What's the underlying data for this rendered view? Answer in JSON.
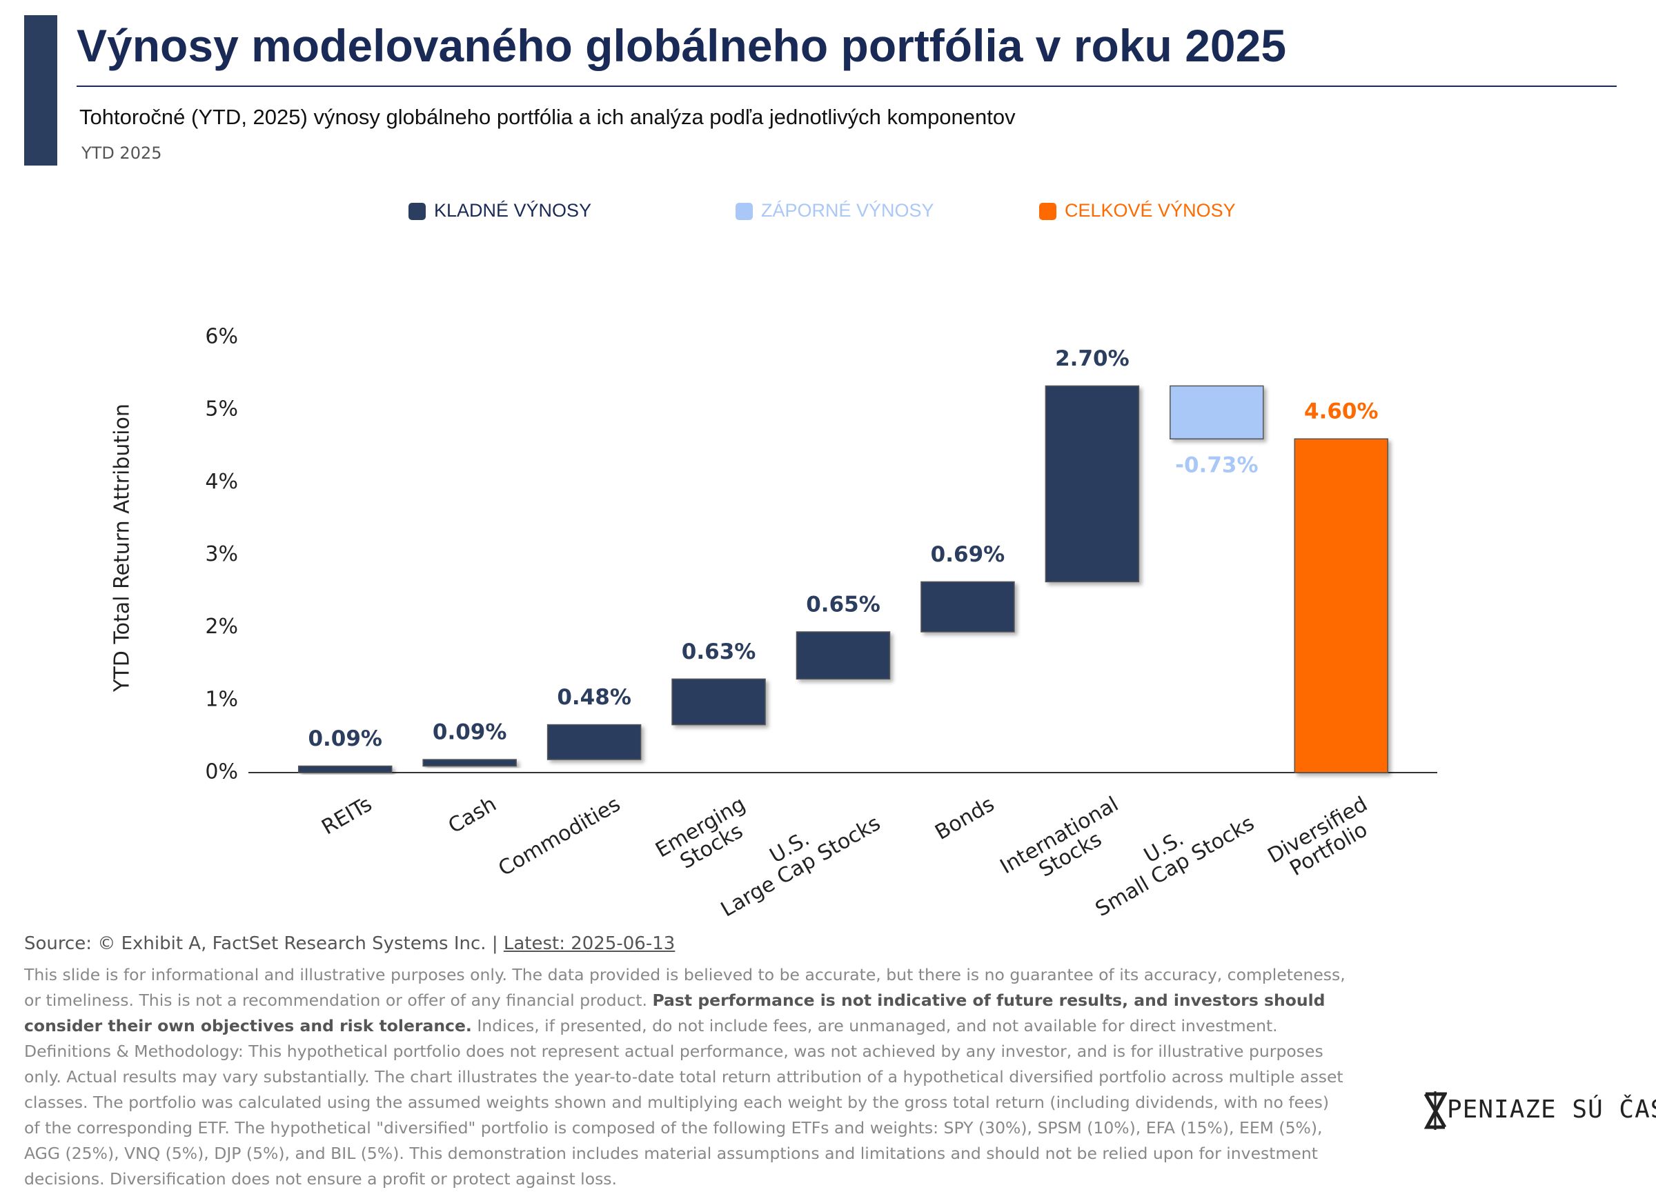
{
  "chart_data": {
    "type": "waterfall",
    "title": "Výnosy modelovaného globálneho portfólia v roku 2025",
    "subtitle": "Tohtoročné (YTD, 2025) výnosy globálneho portfólia a ich analýza podľa jednotlivých komponentov",
    "period": "YTD 2025",
    "legend": [
      {
        "name": "KLADNÉ VÝNOSY",
        "color": "#2c3e5f"
      },
      {
        "name": "ZÁPORNÉ VÝNOSY",
        "color": "#a9c8f7"
      },
      {
        "name": "CELKOVÉ VÝNOSY",
        "color": "#ff6a00"
      }
    ],
    "y_label": "YTD Total Return Attribution",
    "categories": [
      "REITs",
      "Cash",
      "Commodities",
      "Emerging\nStocks",
      "U.S.\nLarge Cap Stocks",
      "Bonds",
      "International\nStocks",
      "U.S.\nSmall Cap Stocks",
      "Diversified\nPortfolio"
    ],
    "values": [
      0.09,
      0.09,
      0.48,
      0.63,
      0.65,
      0.69,
      2.7,
      -0.73,
      4.6
    ],
    "value_labels": [
      "0.09%",
      "0.09%",
      "0.48%",
      "0.63%",
      "0.65%",
      "0.69%",
      "2.70%",
      "-0.73%",
      "4.60%"
    ],
    "colors": [
      "#2c3e5f",
      "#2c3e5f",
      "#2c3e5f",
      "#2c3e5f",
      "#2c3e5f",
      "#2c3e5f",
      "#2c3e5f",
      "#a9c8f7",
      "#ff6a00"
    ],
    "total_last": true,
    "ylim": [
      0,
      6
    ],
    "yticks": [
      {
        "value": 0,
        "label": "0%"
      },
      {
        "value": 1,
        "label": "1%"
      },
      {
        "value": 2,
        "label": "2%"
      },
      {
        "value": 3,
        "label": "3%"
      },
      {
        "value": 4,
        "label": "4%"
      },
      {
        "value": 5,
        "label": "5%"
      },
      {
        "value": 6,
        "label": "6%"
      }
    ]
  },
  "footer": {
    "source": "Source: © Exhibit A, FactSet Research Systems Inc. | ",
    "latest": "Latest: 2025-06-13",
    "disclaimer": [
      "This slide is for informational and illustrative purposes only. The data provided is believed to be accurate, but there is no guarantee of its accuracy, completeness, or timeliness. This is not a recommendation or offer of any financial product. ",
      "Past performance is not indicative of future results, and investors should consider their own objectives and risk tolerance.",
      " Indices, if presented, do not include fees, are unmanaged, and not available for direct investment. Definitions & Methodology: This hypothetical portfolio does not represent actual performance, was not achieved by any investor, and is for illustrative purposes only. Actual results may vary substantially. The chart illustrates the year-to-date total return attribution of a hypothetical diversified portfolio across multiple asset classes. The portfolio was calculated using the assumed weights shown and multiplying each weight by the gross total return (including dividends, with no fees) of the corresponding ETF. The hypothetical \"diversified\" portfolio is composed of the following ETFs and weights: SPY (30%), SPSM (10%), EFA (15%), EEM (5%), AGG (25%), VNQ (5%), DJP (5%), and BIL (5%). This demonstration includes material assumptions and limitations and should not be relied upon for investment decisions. Diversification does not ensure a profit or protect against loss."
    ],
    "logo": "PENIAZE SÚ ČAS"
  }
}
